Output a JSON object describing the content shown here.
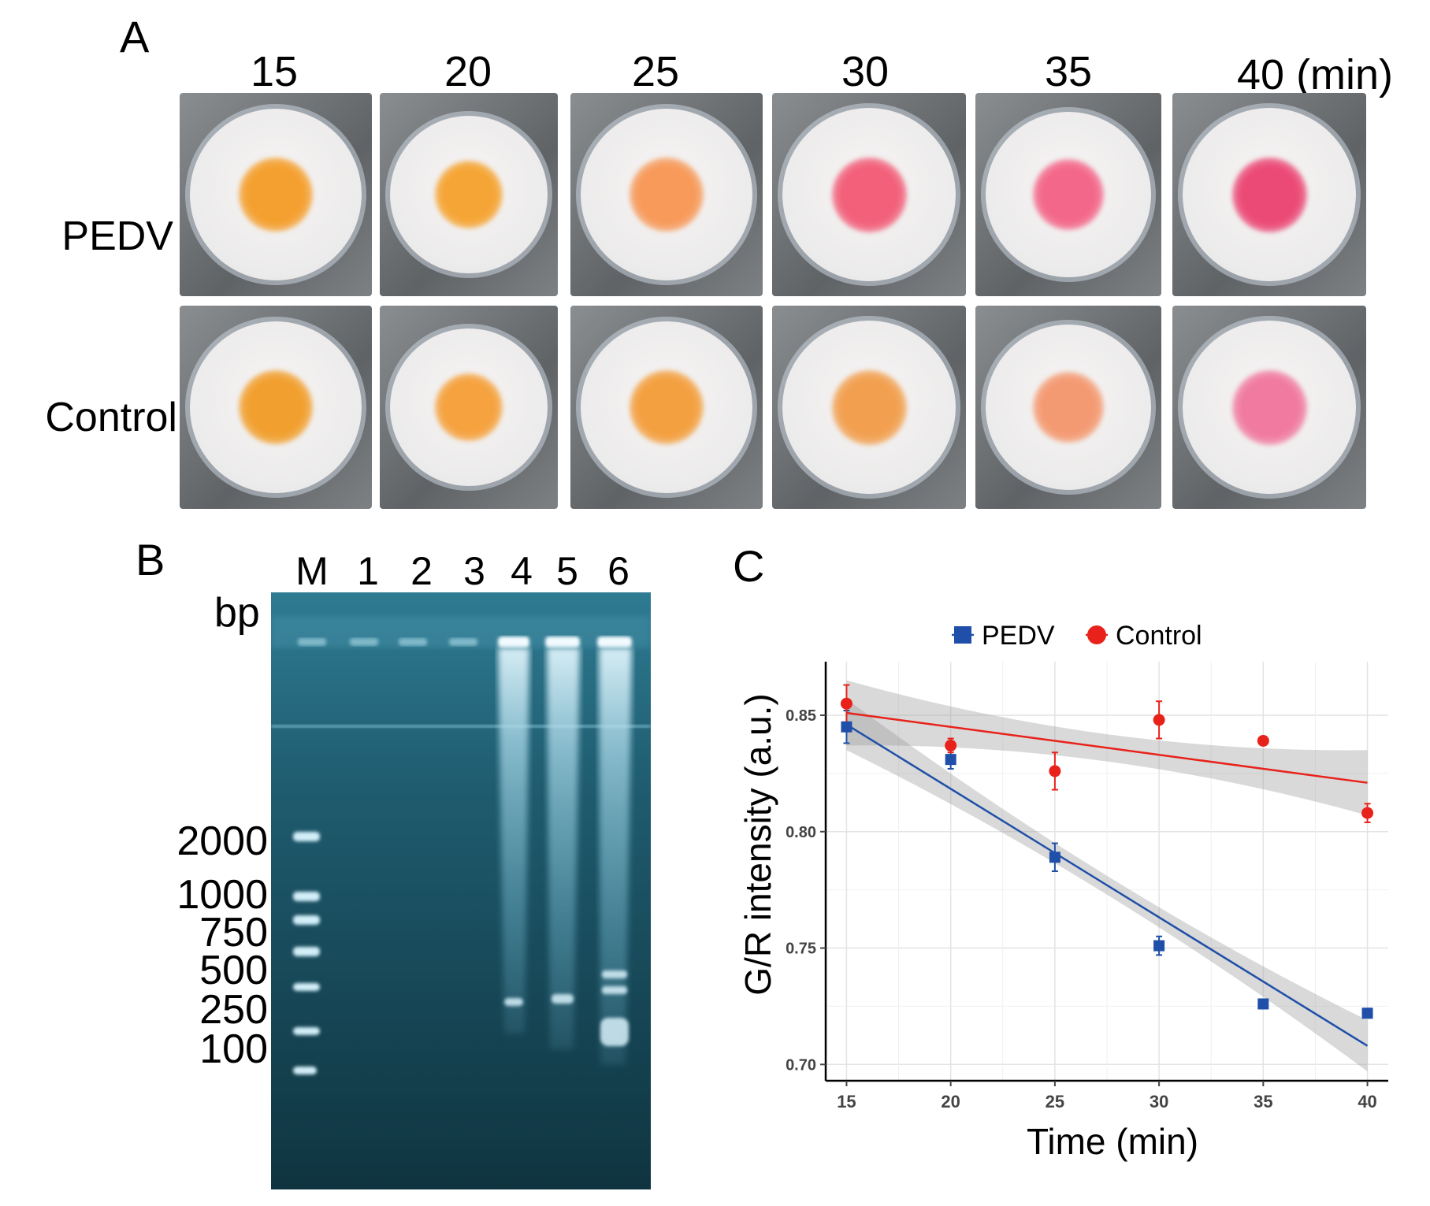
{
  "panel_a": {
    "letter": "A",
    "time_labels": [
      "15",
      "20",
      "25",
      "30",
      "35",
      "40 (min)"
    ],
    "row_labels": [
      "PEDV",
      "Control"
    ],
    "spot_colors": {
      "pedv": [
        "#f4a030",
        "#f5a535",
        "#f79a5a",
        "#f2607a",
        "#f3688a",
        "#eb4a76"
      ],
      "control": [
        "#f1a030",
        "#f5a23f",
        "#f3a040",
        "#f2a050",
        "#f49a72",
        "#f07aa0"
      ]
    }
  },
  "panel_b": {
    "letter": "B",
    "lane_labels": [
      "M",
      "1",
      "2",
      "3",
      "4",
      "5",
      "6"
    ],
    "unit_label": "bp",
    "marker_labels": [
      "2000",
      "1000",
      "750",
      "500",
      "250",
      "100"
    ]
  },
  "panel_c": {
    "letter": "C",
    "chart_data": {
      "type": "scatter",
      "title": "",
      "xlabel": "Time (min)",
      "ylabel": "G/R intensity (a.u.)",
      "x": [
        15,
        20,
        25,
        30,
        35,
        40
      ],
      "xlim": [
        14,
        41
      ],
      "ylim": [
        0.693,
        0.873
      ],
      "xticks": [
        "15",
        "20",
        "25",
        "30",
        "35",
        "40"
      ],
      "yticks": [
        "0.70",
        "0.75",
        "0.80",
        "0.85"
      ],
      "grid": true,
      "legend_position": "top",
      "series": [
        {
          "name": "PEDV",
          "color": "#1f4fa8",
          "marker": "square",
          "values": [
            0.845,
            0.831,
            0.789,
            0.751,
            0.726,
            0.722
          ],
          "errors": [
            0.007,
            0.004,
            0.006,
            0.004,
            0.002,
            0.002
          ],
          "fit": {
            "x": [
              15,
              40
            ],
            "y": [
              0.846,
              0.708
            ],
            "ci": [
              0.009,
              0.011
            ]
          }
        },
        {
          "name": "Control",
          "color": "#e8221b",
          "marker": "circle",
          "values": [
            0.855,
            0.837,
            0.826,
            0.848,
            0.839,
            0.808
          ],
          "errors": [
            0.008,
            0.003,
            0.008,
            0.008,
            0.001,
            0.004
          ],
          "fit": {
            "x": [
              15,
              40
            ],
            "y": [
              0.851,
              0.821
            ],
            "ci": [
              0.013,
              0.014
            ]
          }
        }
      ]
    }
  }
}
